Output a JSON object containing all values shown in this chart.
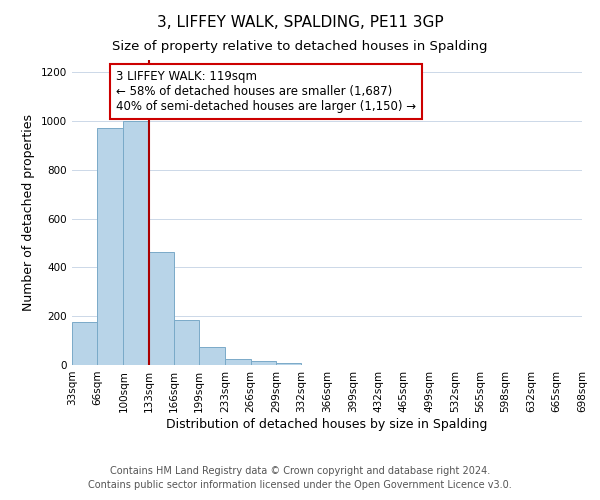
{
  "title": "3, LIFFEY WALK, SPALDING, PE11 3GP",
  "subtitle": "Size of property relative to detached houses in Spalding",
  "xlabel": "Distribution of detached houses by size in Spalding",
  "ylabel": "Number of detached properties",
  "bar_edges": [
    33,
    66,
    100,
    133,
    166,
    199,
    233,
    266,
    299,
    332,
    366,
    399,
    432,
    465,
    499,
    532,
    565,
    598,
    632,
    665,
    698
  ],
  "bar_heights": [
    175,
    970,
    1000,
    465,
    185,
    75,
    25,
    15,
    10,
    0,
    0,
    0,
    0,
    0,
    0,
    0,
    0,
    0,
    0,
    0
  ],
  "bar_color": "#b8d4e8",
  "bar_edgecolor": "#7aaac8",
  "vline_x": 133,
  "vline_color": "#aa0000",
  "ylim": [
    0,
    1250
  ],
  "yticks": [
    0,
    200,
    400,
    600,
    800,
    1000,
    1200
  ],
  "annotation_text": "3 LIFFEY WALK: 119sqm\n← 58% of detached houses are smaller (1,687)\n40% of semi-detached houses are larger (1,150) →",
  "footer_line1": "Contains HM Land Registry data © Crown copyright and database right 2024.",
  "footer_line2": "Contains public sector information licensed under the Open Government Licence v3.0.",
  "background_color": "#ffffff",
  "grid_color": "#ccd8e8",
  "title_fontsize": 11,
  "subtitle_fontsize": 9.5,
  "axis_label_fontsize": 9,
  "tick_fontsize": 7.5,
  "annotation_fontsize": 8.5,
  "footer_fontsize": 7
}
